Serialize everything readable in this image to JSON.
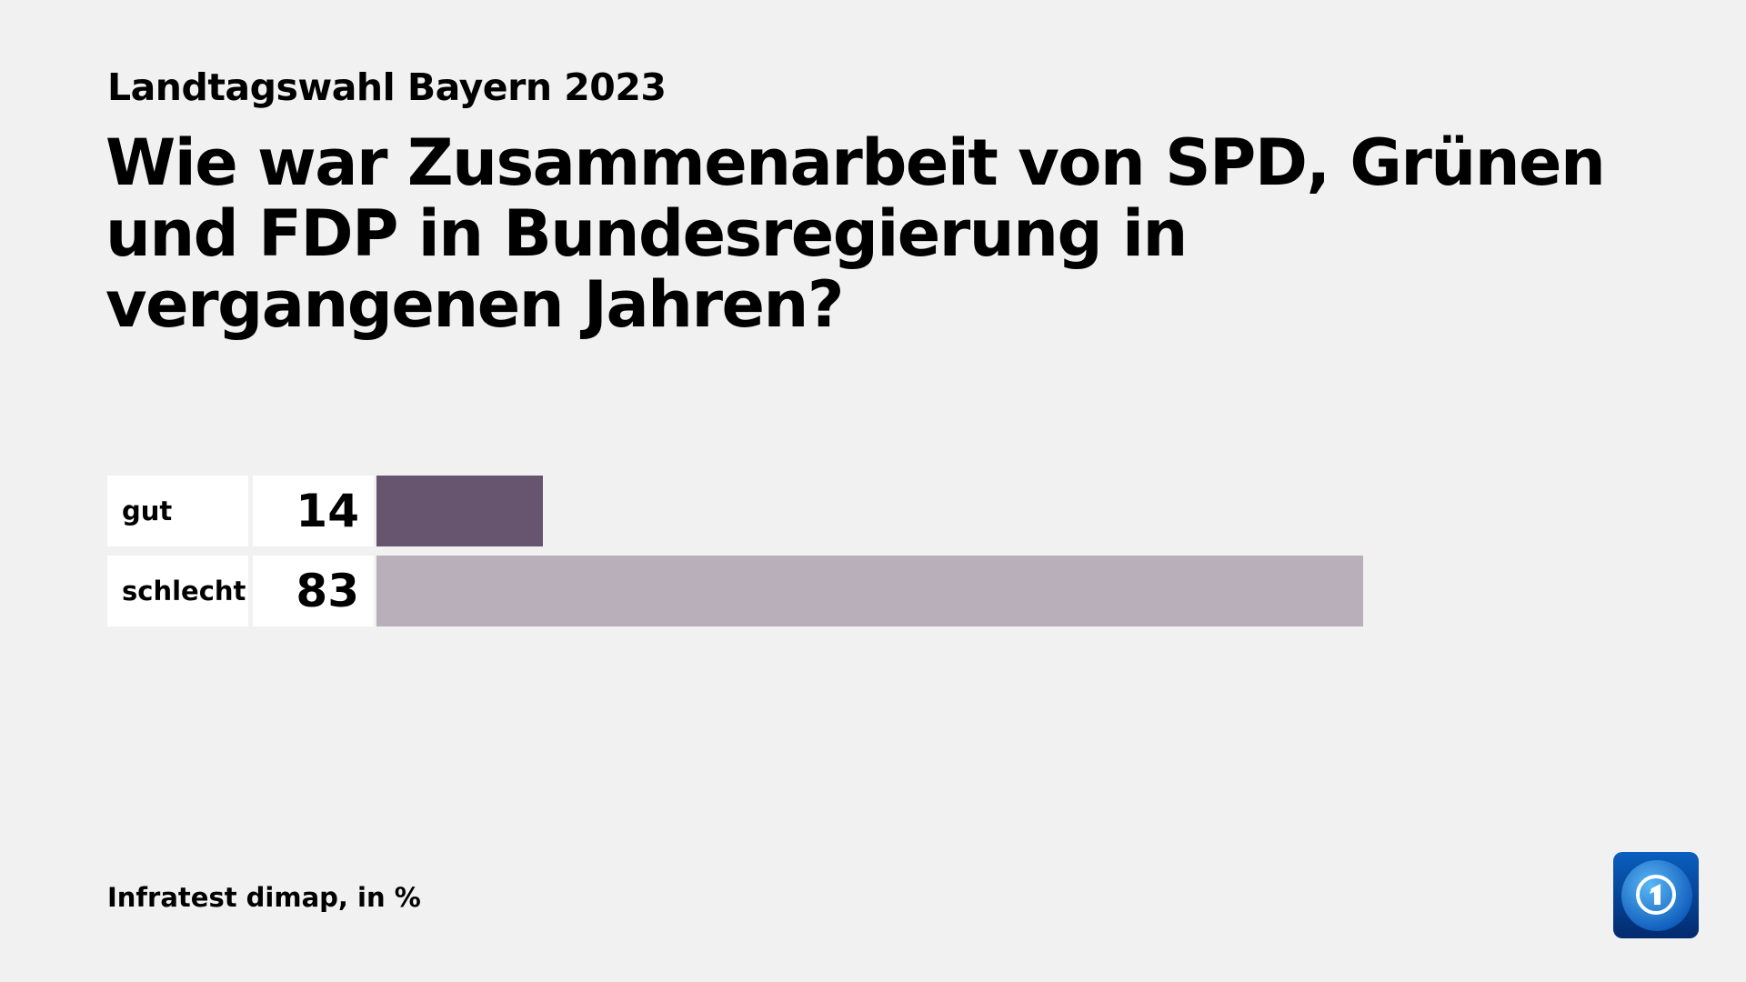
{
  "subtitle": "Landtagswahl Bayern 2023",
  "title": "Wie war Zusammenarbeit von SPD, Grünen und FDP in Bundesregierung in vergangenen Jahren?",
  "footer": "Infratest dimap, in %",
  "logo": "tagesschau-logo",
  "chart_data": {
    "type": "bar",
    "orientation": "horizontal",
    "title": "Wie war Zusammenarbeit von SPD, Grünen und FDP in Bundesregierung in vergangenen Jahren?",
    "categories": [
      "gut",
      "schlecht"
    ],
    "values": [
      14,
      83
    ],
    "colors": [
      "#67556f",
      "#b8afbb"
    ],
    "xlim": [
      0,
      100
    ],
    "grid": false,
    "unit": "%"
  }
}
